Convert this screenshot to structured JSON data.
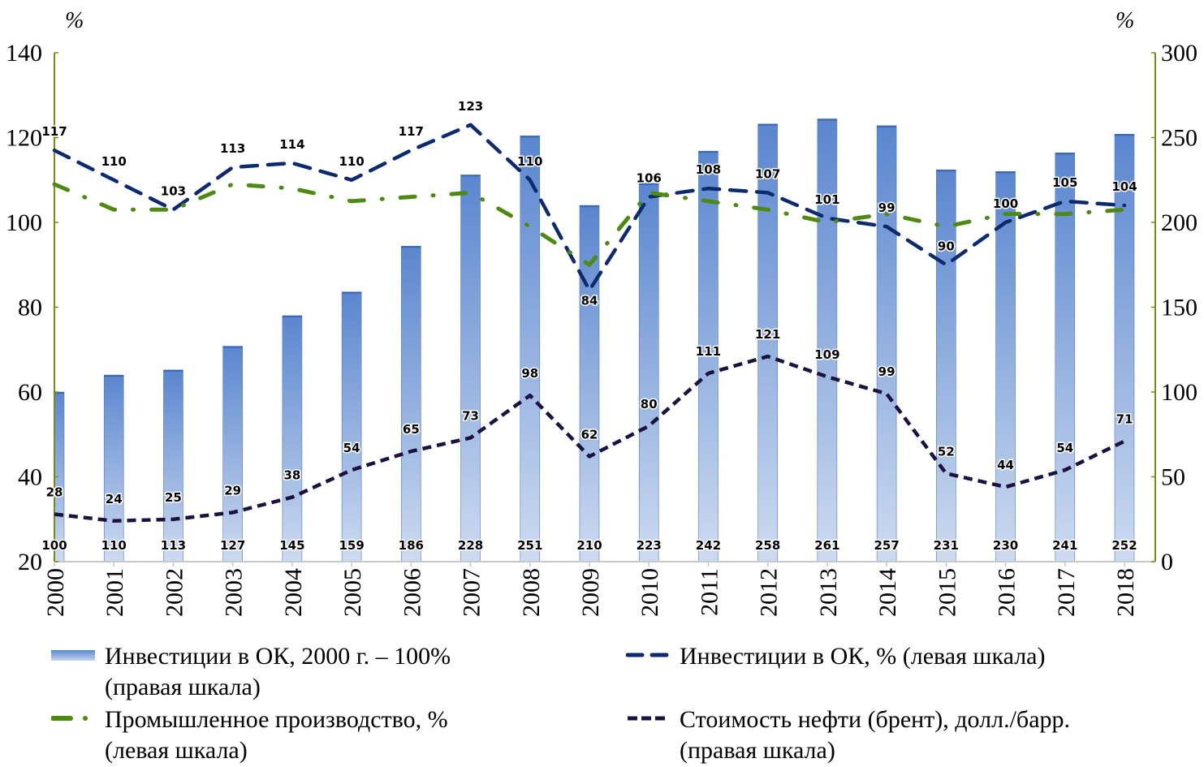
{
  "chart_data": {
    "type": "bar",
    "categories": [
      "2000",
      "2001",
      "2002",
      "2003",
      "2004",
      "2005",
      "2006",
      "2007",
      "2008",
      "2009",
      "2010",
      "2011",
      "2012",
      "2013",
      "2014",
      "2015",
      "2016",
      "2017",
      "2018"
    ],
    "left_axis": {
      "unit": "%",
      "range": [
        20,
        140
      ],
      "ticks": [
        "20",
        "40",
        "60",
        "80",
        "100",
        "120",
        "140"
      ]
    },
    "right_axis": {
      "unit": "%",
      "range": [
        0,
        300
      ],
      "ticks": [
        "0",
        "50",
        "100",
        "150",
        "200",
        "250",
        "300"
      ]
    },
    "grid": false,
    "legend_position": "bottom",
    "series": [
      {
        "name": "Инвестиции в ОК, 2000 г. – 100% (правая шкала)",
        "type": "bar",
        "axis": "right",
        "color": "#5b86cc",
        "values": [
          100,
          110,
          113,
          127,
          145,
          159,
          186,
          228,
          251,
          210,
          223,
          242,
          258,
          261,
          257,
          231,
          230,
          241,
          252
        ],
        "labels": [
          "100",
          "110",
          "113",
          "127",
          "145",
          "159",
          "186",
          "228",
          "251",
          "210",
          "223",
          "242",
          "258",
          "261",
          "257",
          "231",
          "230",
          "241",
          "252"
        ]
      },
      {
        "name": "Инвестиции в ОК, % (левая шкала)",
        "type": "line",
        "style": "dashed",
        "axis": "left",
        "color": "#0d2a6e",
        "values": [
          117,
          110,
          103,
          113,
          114,
          110,
          117,
          123,
          110,
          84,
          106,
          108,
          107,
          101,
          99,
          90,
          100,
          105,
          104
        ],
        "labels": [
          "117",
          "110",
          "103",
          "113",
          "114",
          "110",
          "117",
          "123",
          "110",
          "84",
          "106",
          "108",
          "107",
          "101",
          "99",
          "90",
          "100",
          "105",
          "104"
        ]
      },
      {
        "name": "Промышленное производство, % (левая шкала)",
        "type": "line",
        "style": "dash-dot",
        "axis": "left",
        "color": "#4e8a12",
        "values": [
          109,
          103,
          103,
          109,
          108,
          105,
          106,
          107,
          99,
          90,
          107,
          105,
          103,
          100,
          102,
          99,
          102,
          102,
          103
        ]
      },
      {
        "name": "Стоимость нефти (брент), долл./барр. (правая шкала)",
        "type": "line",
        "style": "short-dashed",
        "axis": "right",
        "color": "#1c1240",
        "values": [
          28,
          24,
          25,
          29,
          38,
          54,
          65,
          73,
          98,
          62,
          80,
          111,
          121,
          109,
          99,
          52,
          44,
          54,
          71
        ],
        "labels": [
          "28",
          "24",
          "25",
          "29",
          "38",
          "54",
          "65",
          "73",
          "98",
          "62",
          "80",
          "111",
          "121",
          "109",
          "99",
          "52",
          "44",
          "54",
          "71"
        ]
      }
    ]
  },
  "legend": {
    "bars": {
      "line1": "Инвестиции в ОК, 2000 г. – 100%",
      "line2": "(правая шкала)"
    },
    "invest_pct": {
      "line1": "Инвестиции в ОК, % (левая шкала)"
    },
    "industry": {
      "line1": "Промышленное производство, %",
      "line2": "(левая шкала)"
    },
    "oil": {
      "line1": "Стоимость нефти (брент), долл./барр.",
      "line2": "(правая шкала)"
    }
  }
}
